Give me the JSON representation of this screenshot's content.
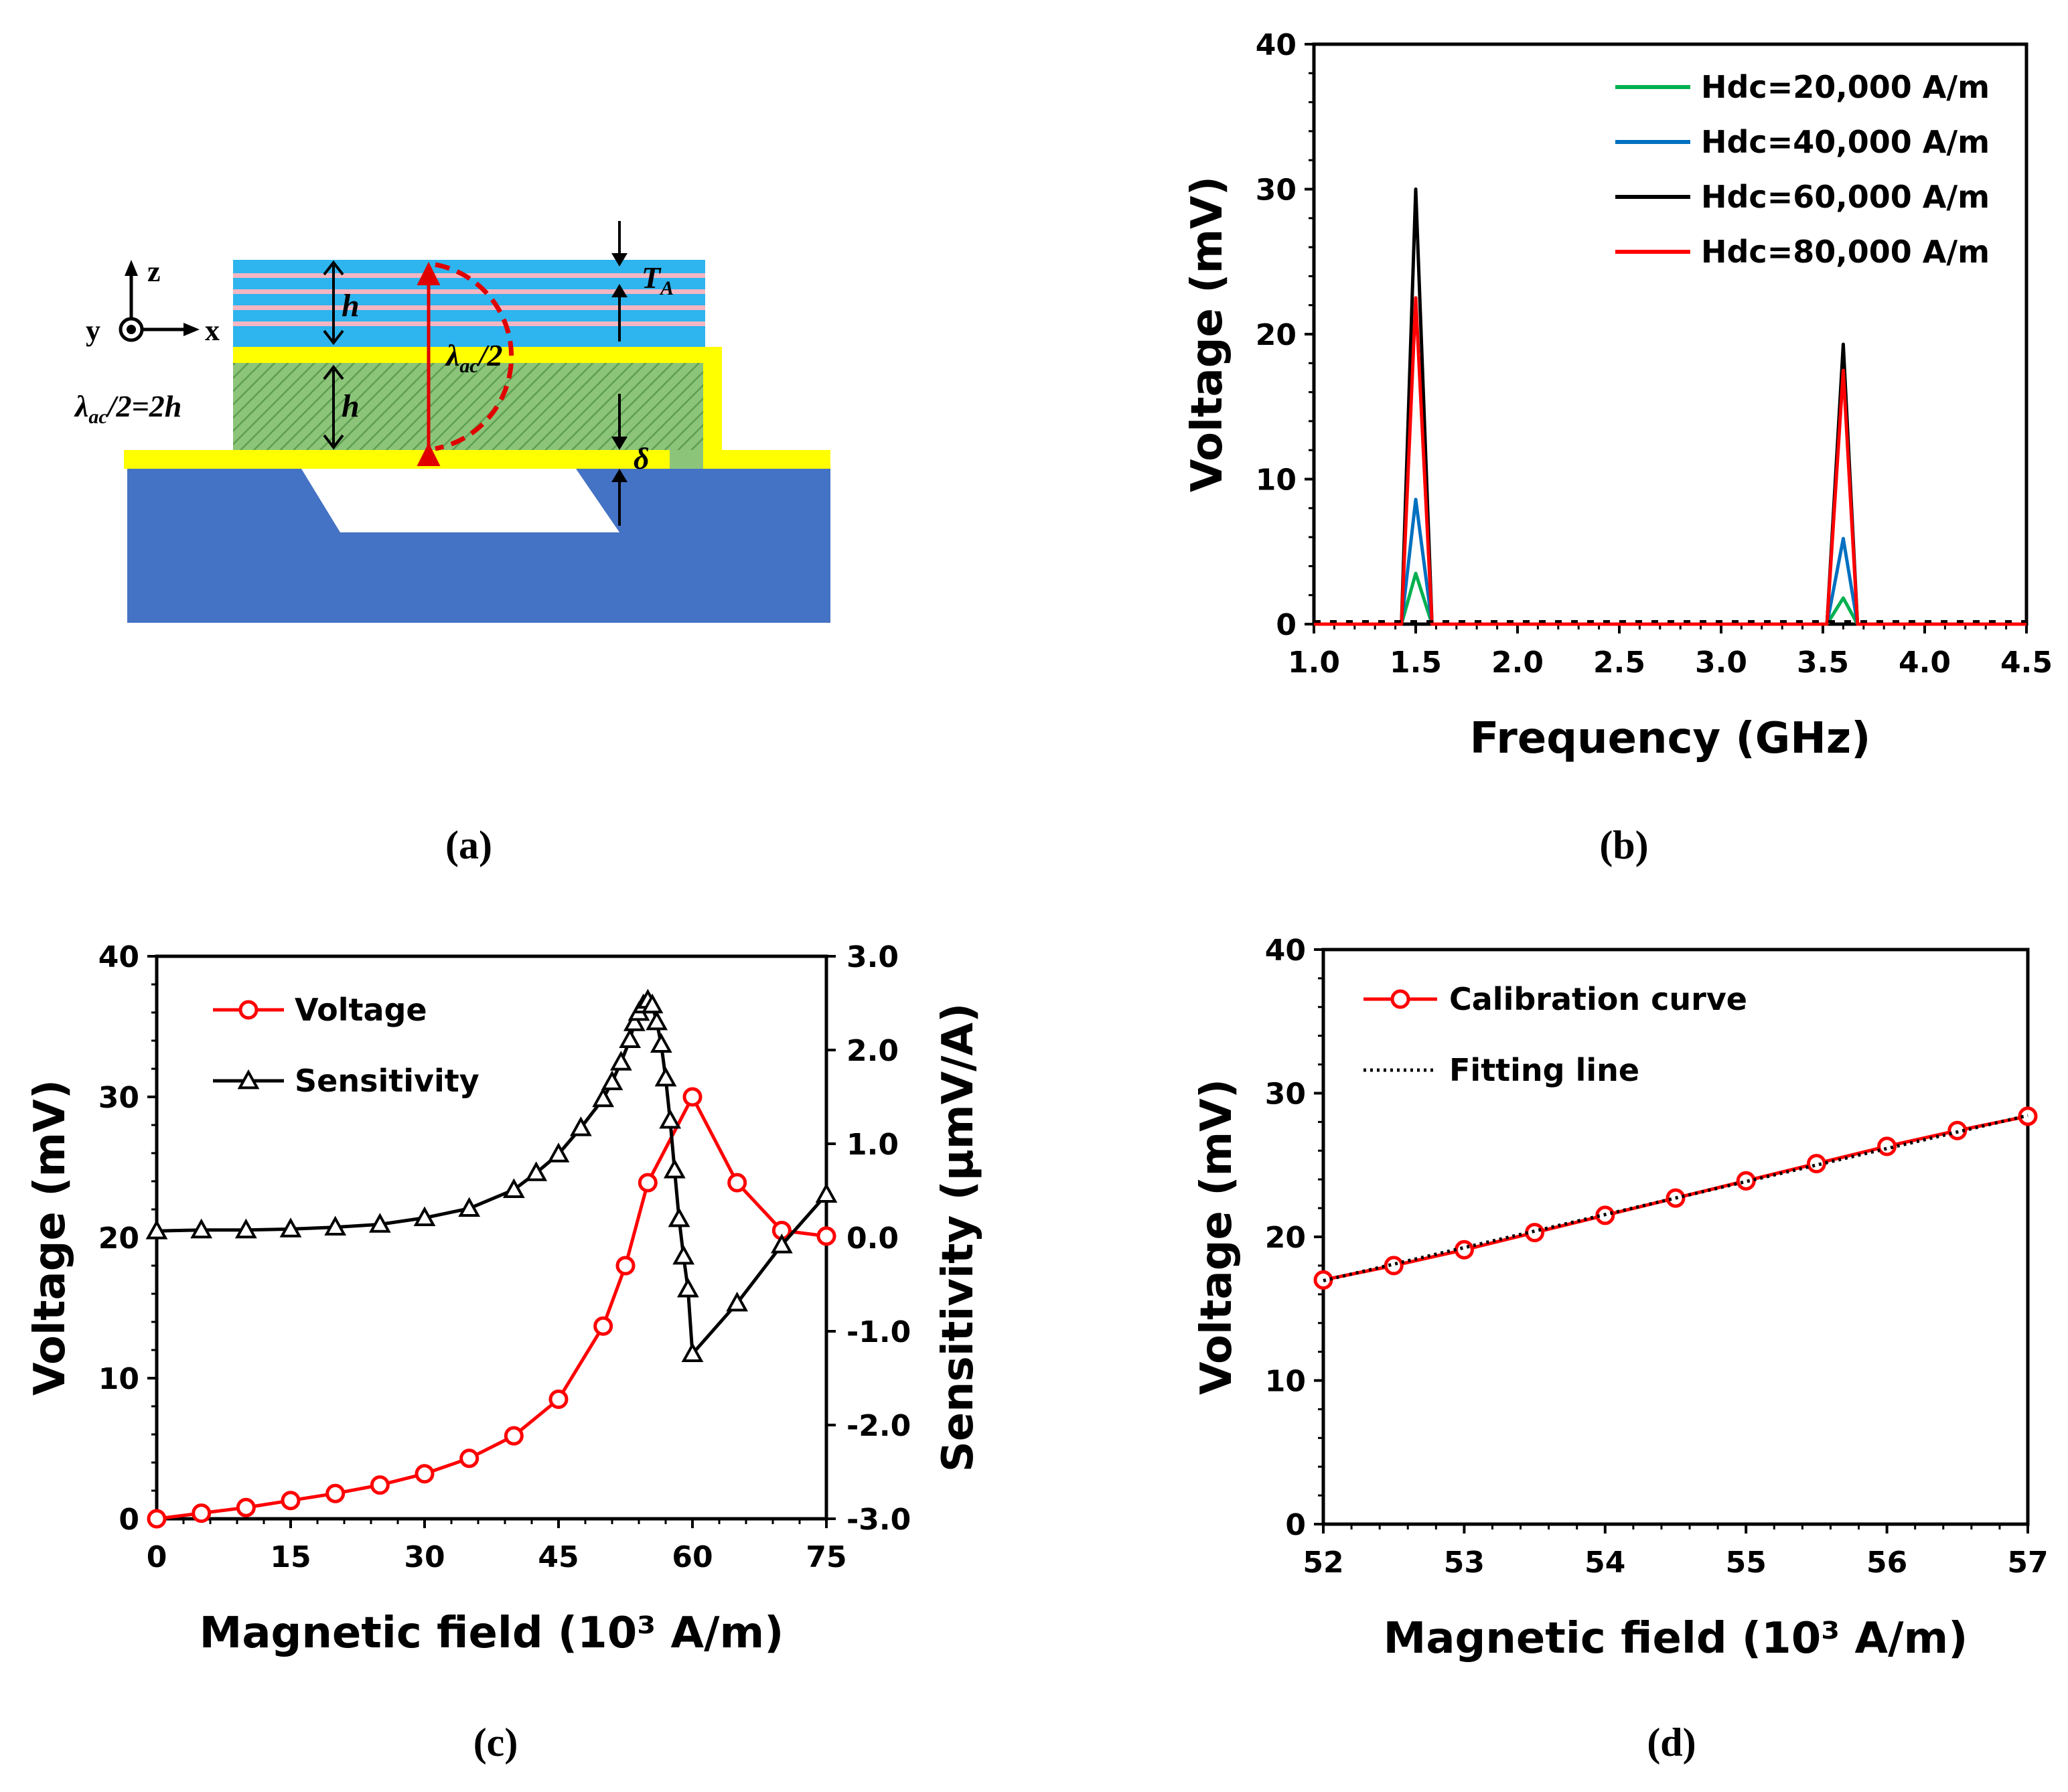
{
  "panels": {
    "a": {
      "caption": "(a)",
      "labels": {
        "z": "z",
        "y": "y",
        "x": "x",
        "h_top": "h",
        "h_bottom": "h",
        "ta": "T",
        "ta_sub": "A",
        "lambda_half": "λ",
        "lambda_half_sub": "ac",
        "lambda_half_tail": "/2",
        "lambda_eq": "λ",
        "lambda_eq_sub": "ac",
        "lambda_eq_tail": "/2=2h",
        "delta": "δ"
      },
      "colors": {
        "substrate": "#4472C4",
        "electrode": "#FFFF00",
        "piezo": "#8CC57A",
        "ml_blue": "#2EB4EE",
        "ml_pink": "#F4B6C2",
        "arrow": "#E00000"
      }
    },
    "b": {
      "caption": "(b)"
    },
    "c": {
      "caption": "(c)"
    },
    "d": {
      "caption": "(d)"
    }
  },
  "chart_data": [
    {
      "id": "b",
      "type": "line",
      "xlabel": "Frequency (GHz)",
      "ylabel": "Voltage (mV)",
      "xlim": [
        1.0,
        4.5
      ],
      "ylim": [
        0,
        40
      ],
      "xticks": [
        "1.0",
        "1.5",
        "2.0",
        "2.5",
        "3.0",
        "3.5",
        "4.0",
        "4.5"
      ],
      "yticks": [
        "0",
        "10",
        "20",
        "30",
        "40"
      ],
      "legend_position": "top-right",
      "series": [
        {
          "name": "Hdc=20,000 A/m",
          "color": "#00B050",
          "x": [
            1.0,
            1.43,
            1.5,
            1.58,
            3.52,
            3.6,
            3.67,
            4.5
          ],
          "values": [
            0,
            0,
            3.5,
            0,
            0,
            1.8,
            0,
            0
          ]
        },
        {
          "name": "Hdc=40,000 A/m",
          "color": "#0070C0",
          "x": [
            1.0,
            1.43,
            1.5,
            1.58,
            3.52,
            3.6,
            3.67,
            4.5
          ],
          "values": [
            0,
            0,
            8.6,
            0,
            0,
            5.9,
            0,
            0
          ]
        },
        {
          "name": "Hdc=60,000 A/m",
          "color": "#000000",
          "x": [
            1.0,
            1.43,
            1.5,
            1.58,
            3.52,
            3.6,
            3.67,
            4.5
          ],
          "values": [
            0,
            0,
            30.0,
            0,
            0,
            19.3,
            0,
            0
          ]
        },
        {
          "name": "Hdc=80,000 A/m",
          "color": "#FF0000",
          "x": [
            1.0,
            1.43,
            1.5,
            1.58,
            3.52,
            3.6,
            3.67,
            4.5
          ],
          "values": [
            0,
            0,
            22.5,
            0,
            0,
            17.5,
            0,
            0
          ]
        }
      ]
    },
    {
      "id": "c",
      "type": "line",
      "xlabel": "Magnetic field (10³ A/m)",
      "ylabel": "Voltage (mV)",
      "y2label": "Sensitivity (μmV/A)",
      "xlim": [
        0,
        75
      ],
      "ylim": [
        0,
        40
      ],
      "y2lim": [
        -3.0,
        3.0
      ],
      "xticks": [
        "0",
        "15",
        "30",
        "45",
        "60",
        "75"
      ],
      "yticks": [
        "0",
        "10",
        "20",
        "30",
        "40"
      ],
      "y2ticks": [
        "-3.0",
        "-2.0",
        "-1.0",
        "0.0",
        "1.0",
        "2.0",
        "3.0"
      ],
      "legend_position": "top-left",
      "series": [
        {
          "name": "Voltage",
          "color": "#FF0000",
          "marker": "circle",
          "axis": "left",
          "x": [
            0,
            5,
            10,
            15,
            20,
            25,
            30,
            35,
            40,
            45,
            50,
            52.5,
            55,
            60,
            65,
            70,
            75
          ],
          "values": [
            0,
            0.4,
            0.8,
            1.3,
            1.8,
            2.4,
            3.2,
            4.3,
            5.9,
            8.5,
            13.7,
            18.0,
            23.9,
            30.0,
            23.9,
            20.5,
            20.1
          ]
        },
        {
          "name": "Sensitivity",
          "color": "#000000",
          "marker": "triangle",
          "axis": "right",
          "x": [
            0,
            5,
            10,
            15,
            20,
            25,
            30,
            35,
            40,
            42.5,
            45,
            47.5,
            50,
            51,
            52,
            53,
            53.5,
            54,
            54.5,
            55,
            55.5,
            56,
            56.5,
            57,
            57.5,
            58,
            58.5,
            59,
            59.5,
            60,
            65,
            70,
            75
          ],
          "values": [
            0.07,
            0.08,
            0.08,
            0.09,
            0.11,
            0.14,
            0.21,
            0.31,
            0.51,
            0.69,
            0.89,
            1.17,
            1.48,
            1.66,
            1.87,
            2.11,
            2.29,
            2.4,
            2.48,
            2.53,
            2.48,
            2.3,
            2.06,
            1.7,
            1.25,
            0.72,
            0.2,
            -0.2,
            -0.55,
            -1.24,
            -0.7,
            -0.08,
            0.46
          ]
        }
      ]
    },
    {
      "id": "d",
      "type": "line",
      "xlabel": "Magnetic field (10³ A/m)",
      "ylabel": "Voltage (mV)",
      "xlim": [
        52,
        57
      ],
      "ylim": [
        0,
        40
      ],
      "xticks": [
        "52",
        "53",
        "54",
        "55",
        "56",
        "57"
      ],
      "yticks": [
        "0",
        "10",
        "20",
        "30",
        "40"
      ],
      "legend_position": "top-left",
      "series": [
        {
          "name": "Calibration curve",
          "color": "#FF0000",
          "marker": "circle",
          "x": [
            52,
            52.5,
            53,
            53.5,
            54,
            54.5,
            55,
            55.5,
            56,
            56.5,
            57
          ],
          "values": [
            17.0,
            18.0,
            19.1,
            20.3,
            21.5,
            22.7,
            23.9,
            25.1,
            26.3,
            27.4,
            28.4
          ]
        },
        {
          "name": "Fitting line",
          "color": "#000000",
          "style": "dotted",
          "x": [
            52,
            57
          ],
          "values": [
            16.95,
            28.45
          ]
        }
      ]
    }
  ]
}
